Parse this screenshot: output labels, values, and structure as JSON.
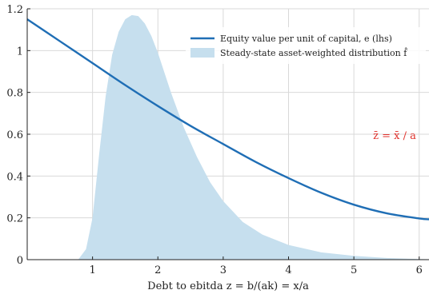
{
  "chart_data": {
    "type": "area",
    "title": "",
    "xlabel": "Debt to ebitda z = b/(ak) = x/a",
    "ylabel": "",
    "xlim": [
      0,
      6.15
    ],
    "ylim": [
      0,
      1.2
    ],
    "xticks": [
      1,
      2,
      3,
      4,
      5,
      6
    ],
    "yticks": [
      0,
      0.2,
      0.4,
      0.6,
      0.8,
      1,
      1.2
    ],
    "xtick_labels": [
      "1",
      "2",
      "3",
      "4",
      "5",
      "6"
    ],
    "ytick_labels": [
      "0",
      "0.2",
      "0.4",
      "0.6",
      "0.8",
      "1",
      "1.2"
    ],
    "grid": true,
    "legend_position": "top-right",
    "series": [
      {
        "name": "Equity value per unit of capital, e (lhs)",
        "kind": "line",
        "color": "#1f6eb5",
        "x": [
          0,
          0.5,
          1,
          1.5,
          2,
          2.5,
          3,
          3.5,
          4,
          4.5,
          5,
          5.5,
          6,
          6.15
        ],
        "y": [
          1.15,
          1.045,
          0.94,
          0.835,
          0.735,
          0.64,
          0.553,
          0.467,
          0.39,
          0.32,
          0.263,
          0.222,
          0.197,
          0.193
        ]
      },
      {
        "name": "Steady-state asset-weighted distribution f̂",
        "kind": "area",
        "color": "#c6dfee",
        "x": [
          0.78,
          0.9,
          1.0,
          1.1,
          1.2,
          1.3,
          1.4,
          1.5,
          1.6,
          1.7,
          1.8,
          1.9,
          2.0,
          2.2,
          2.4,
          2.6,
          2.8,
          3.0,
          3.3,
          3.6,
          4.0,
          4.5,
          5.0,
          5.5,
          6.0,
          6.15
        ],
        "y": [
          0.0,
          0.05,
          0.2,
          0.5,
          0.78,
          0.98,
          1.09,
          1.15,
          1.17,
          1.165,
          1.13,
          1.07,
          0.99,
          0.8,
          0.63,
          0.49,
          0.37,
          0.28,
          0.18,
          0.12,
          0.07,
          0.035,
          0.018,
          0.008,
          0.003,
          0.002
        ]
      }
    ],
    "annotations": [
      {
        "text": "z̄ = x̄ / a",
        "color": "#e0312b",
        "x": 5.95,
        "y": 0.6
      }
    ]
  }
}
